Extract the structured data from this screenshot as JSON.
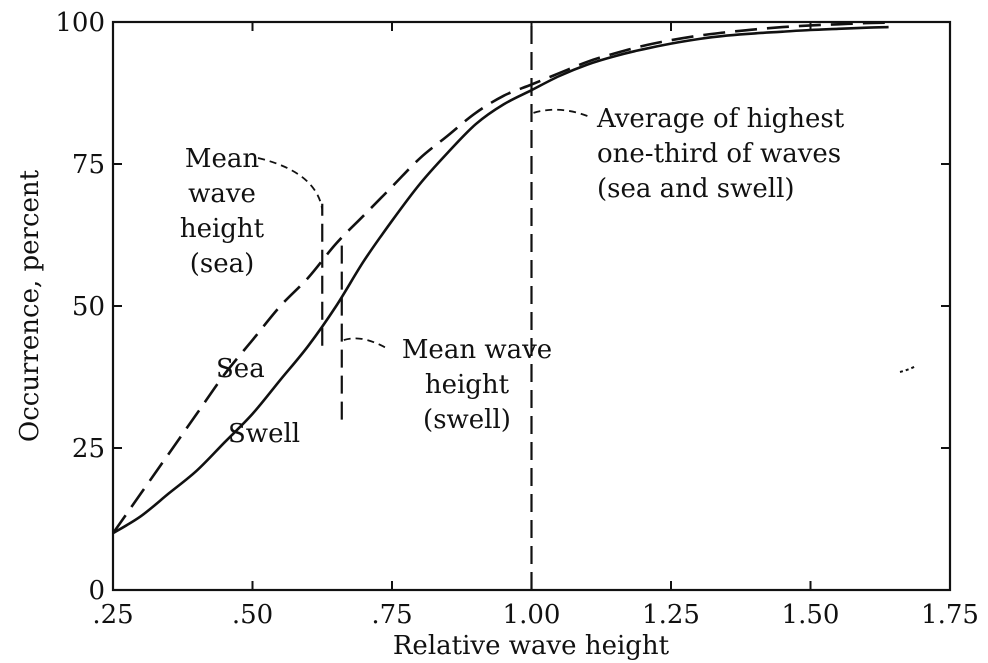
{
  "chart_data": {
    "type": "line",
    "xlabel": "Relative wave height",
    "ylabel": "Occurrence, percent",
    "xlim": [
      0.25,
      1.75
    ],
    "ylim": [
      0,
      100
    ],
    "xticks": [
      0.25,
      0.5,
      0.75,
      1.0,
      1.25,
      1.5,
      1.75
    ],
    "xtick_labels": [
      ".25",
      ".50",
      ".75",
      "1.00",
      "1.25",
      "1.50",
      "1.75"
    ],
    "yticks": [
      0,
      25,
      50,
      75,
      100
    ],
    "ytick_labels": [
      "0",
      "25",
      "50",
      "75",
      "100"
    ],
    "grid": false,
    "series": [
      {
        "name": "Sea",
        "style": "dashed",
        "x": [
          0.25,
          0.3,
          0.35,
          0.4,
          0.45,
          0.5,
          0.55,
          0.6,
          0.65,
          0.7,
          0.75,
          0.8,
          0.85,
          0.9,
          0.95,
          1.0,
          1.05,
          1.1,
          1.15,
          1.2,
          1.25,
          1.3,
          1.35,
          1.4,
          1.45,
          1.5,
          1.55,
          1.6,
          1.64
        ],
        "y": [
          10,
          17,
          24,
          31,
          38,
          44,
          50,
          55,
          61,
          66,
          71,
          76,
          80,
          84,
          87,
          89,
          91,
          93,
          94.5,
          95.8,
          96.8,
          97.6,
          98.2,
          98.7,
          99.1,
          99.4,
          99.6,
          99.8,
          99.9
        ]
      },
      {
        "name": "Swell",
        "style": "solid",
        "x": [
          0.25,
          0.3,
          0.35,
          0.4,
          0.45,
          0.5,
          0.55,
          0.6,
          0.65,
          0.7,
          0.75,
          0.8,
          0.85,
          0.9,
          0.95,
          1.0,
          1.05,
          1.1,
          1.15,
          1.2,
          1.25,
          1.3,
          1.35,
          1.4,
          1.45,
          1.5,
          1.55,
          1.6,
          1.64
        ],
        "y": [
          10,
          13,
          17,
          21,
          26,
          31,
          37,
          43,
          50,
          58,
          65,
          71.5,
          77,
          82,
          85.5,
          88,
          90.5,
          92.5,
          94,
          95.2,
          96.2,
          97,
          97.6,
          98,
          98.3,
          98.6,
          98.8,
          99,
          99.1
        ]
      }
    ],
    "markers": [
      {
        "name": "Mean wave height (sea)",
        "x": 0.625,
        "y_range": [
          43,
          68
        ]
      },
      {
        "name": "Mean wave height (swell)",
        "x": 0.66,
        "y_range": [
          30,
          61
        ]
      },
      {
        "name": "Average of highest one-third of waves (sea and swell)",
        "x": 1.0,
        "y_range": [
          0,
          100
        ]
      }
    ],
    "annotations": {
      "sea_label": "Sea",
      "swell_label": "Swell",
      "mean_sea": [
        "Mean",
        "wave",
        "height",
        "(sea)"
      ],
      "mean_swell": [
        "Mean wave",
        "height",
        "(swell)"
      ],
      "highest_third": [
        "Average of highest",
        "one-third of waves",
        "(sea and swell)"
      ]
    }
  }
}
